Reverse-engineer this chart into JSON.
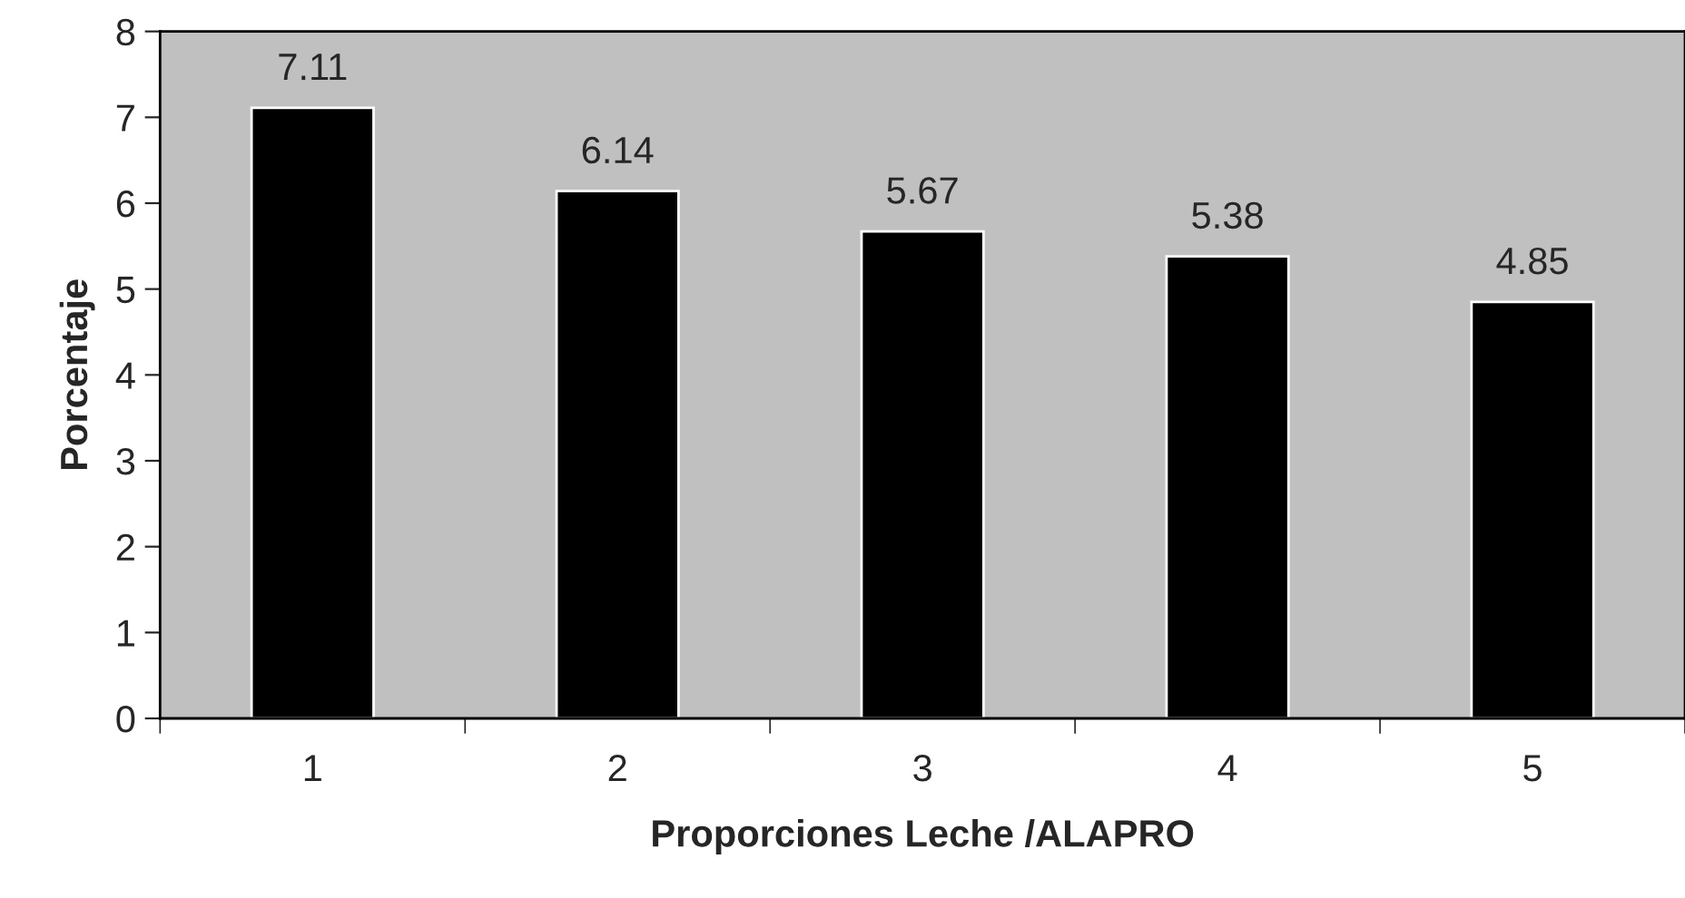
{
  "chart_data": {
    "type": "bar",
    "xlabel": "Proporciones Leche /ALAPRO",
    "ylabel": "Porcentaje",
    "categories": [
      "1",
      "2",
      "3",
      "4",
      "5"
    ],
    "values": [
      7.11,
      6.14,
      5.67,
      5.38,
      4.85
    ],
    "color": "#000000",
    "ylim": [
      0,
      8
    ],
    "yticks": [
      0,
      1,
      2,
      3,
      4,
      5,
      6,
      7,
      8
    ],
    "grid": false,
    "legend": false,
    "data_labels": true
  }
}
